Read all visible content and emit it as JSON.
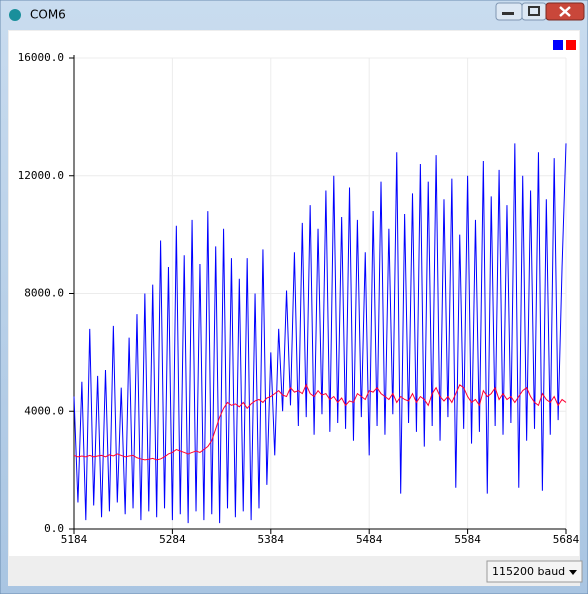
{
  "window": {
    "title": "COM6"
  },
  "chart_data": {
    "type": "line",
    "x": [
      5184,
      5188,
      5192,
      5196,
      5200,
      5204,
      5208,
      5212,
      5216,
      5220,
      5224,
      5228,
      5232,
      5236,
      5240,
      5244,
      5248,
      5252,
      5256,
      5260,
      5264,
      5268,
      5272,
      5276,
      5280,
      5284,
      5288,
      5292,
      5296,
      5300,
      5304,
      5308,
      5312,
      5316,
      5320,
      5324,
      5328,
      5332,
      5336,
      5340,
      5344,
      5348,
      5352,
      5356,
      5360,
      5364,
      5368,
      5372,
      5376,
      5380,
      5384,
      5388,
      5392,
      5396,
      5400,
      5404,
      5408,
      5412,
      5416,
      5420,
      5424,
      5428,
      5432,
      5436,
      5440,
      5444,
      5448,
      5452,
      5456,
      5460,
      5464,
      5468,
      5472,
      5476,
      5480,
      5484,
      5488,
      5492,
      5496,
      5500,
      5504,
      5508,
      5512,
      5516,
      5520,
      5524,
      5528,
      5532,
      5536,
      5540,
      5544,
      5548,
      5552,
      5556,
      5560,
      5564,
      5568,
      5572,
      5576,
      5580,
      5584,
      5588,
      5592,
      5596,
      5600,
      5604,
      5608,
      5612,
      5616,
      5620,
      5624,
      5628,
      5632,
      5636,
      5640,
      5644,
      5648,
      5652,
      5656,
      5660,
      5664,
      5668,
      5672,
      5676,
      5680,
      5684
    ],
    "series": [
      {
        "color": "#0000ff",
        "values": [
          4500,
          900,
          5000,
          300,
          6800,
          800,
          5200,
          400,
          5400,
          600,
          6900,
          900,
          4800,
          500,
          6500,
          700,
          7300,
          300,
          8000,
          600,
          8300,
          400,
          9800,
          700,
          8900,
          300,
          10300,
          500,
          9300,
          200,
          10500,
          600,
          9000,
          300,
          10800,
          500,
          9600,
          200,
          10200,
          700,
          9200,
          400,
          8500,
          600,
          9200,
          300,
          8000,
          700,
          9500,
          1500,
          6000,
          2500,
          6800,
          4000,
          8100,
          4200,
          9400,
          3500,
          10400,
          3800,
          11000,
          3200,
          10200,
          3900,
          11500,
          3300,
          12000,
          3600,
          10600,
          3400,
          11600,
          3000,
          10500,
          3800,
          9400,
          2500,
          10800,
          3500,
          11800,
          3200,
          10200,
          3900,
          12800,
          1200,
          10700,
          3600,
          11400,
          3300,
          12400,
          2800,
          11800,
          3500,
          12700,
          3000,
          11200,
          3800,
          11900,
          1400,
          10000,
          3400,
          12000,
          2900,
          10500,
          3300,
          12500,
          1200,
          11300,
          3500,
          12200,
          3200,
          11000,
          3600,
          13100,
          1400,
          12000,
          3000,
          11500,
          3400,
          12800,
          1300,
          11200,
          3200,
          12600,
          3700,
          8900,
          13100
        ]
      },
      {
        "color": "#ff0033",
        "values": [
          2500,
          2450,
          2480,
          2450,
          2500,
          2450,
          2480,
          2500,
          2450,
          2520,
          2480,
          2550,
          2500,
          2450,
          2480,
          2500,
          2420,
          2380,
          2350,
          2370,
          2400,
          2350,
          2380,
          2450,
          2550,
          2600,
          2700,
          2650,
          2600,
          2550,
          2600,
          2650,
          2600,
          2700,
          2800,
          3000,
          3400,
          3800,
          4100,
          4300,
          4200,
          4250,
          4150,
          4300,
          4100,
          4250,
          4350,
          4400,
          4300,
          4450,
          4500,
          4600,
          4700,
          4550,
          4500,
          4800,
          4650,
          4700,
          4600,
          4900,
          4600,
          4500,
          4700,
          4550,
          4600,
          4400,
          4500,
          4300,
          4450,
          4200,
          4350,
          4300,
          4600,
          4500,
          4400,
          4700,
          4650,
          4800,
          4600,
          4500,
          4400,
          4600,
          4300,
          4500,
          4400,
          4350,
          4600,
          4300,
          4500,
          4400,
          4200,
          4600,
          4800,
          4500,
          4350,
          4500,
          4300,
          4600,
          4900,
          4800,
          4500,
          4300,
          4400,
          4200,
          4700,
          4500,
          4600,
          4800,
          4400,
          4600,
          4400,
          4500,
          4300,
          4500,
          4700,
          4800,
          4500,
          4300,
          4200,
          4600,
          4400,
          4300,
          4500,
          4200,
          4400,
          4300
        ]
      }
    ],
    "xlim": [
      5184,
      5684
    ],
    "xticks": [
      5184,
      5284,
      5384,
      5484,
      5584,
      5684
    ],
    "ylim": [
      0,
      16000
    ],
    "yticks": [
      {
        "value": 0,
        "label": "0.0"
      },
      {
        "value": 4000,
        "label": "4000.0"
      },
      {
        "value": 8000,
        "label": "8000.0"
      },
      {
        "value": 12000,
        "label": "12000.0"
      },
      {
        "value": 16000,
        "label": "16000.0"
      }
    ],
    "grid": true
  },
  "baud": "115200 baud"
}
